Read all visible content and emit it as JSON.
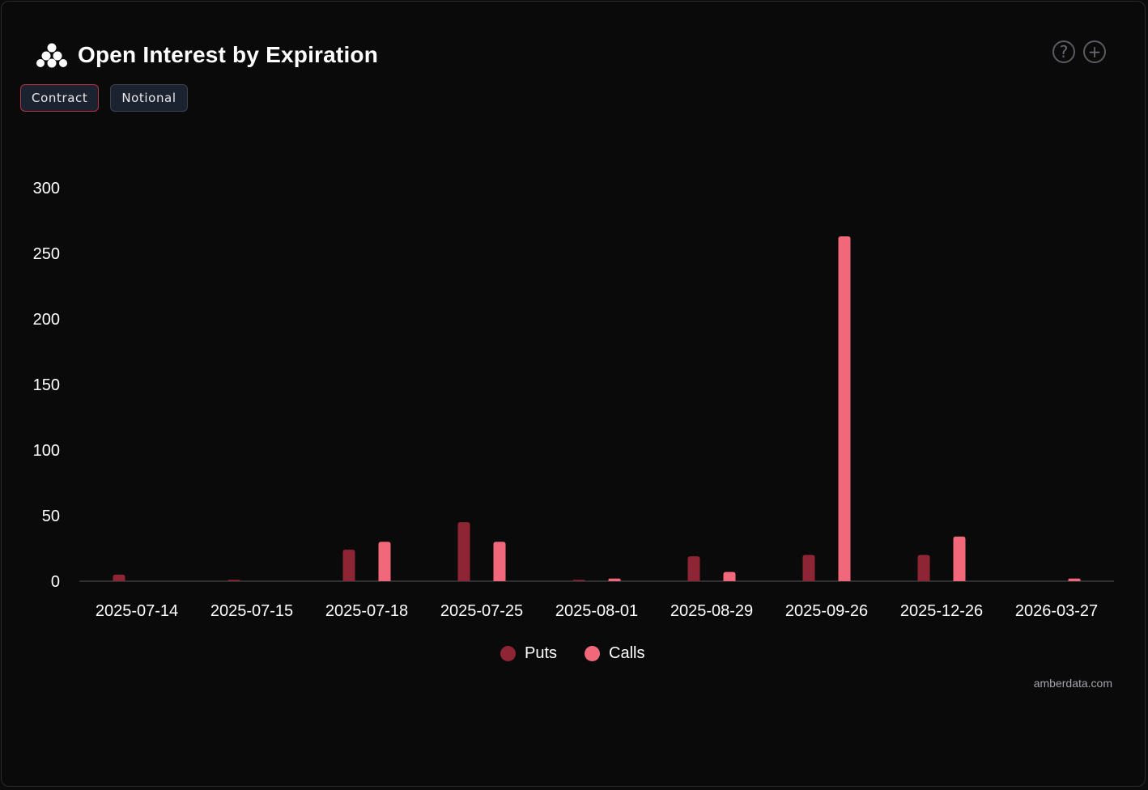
{
  "header": {
    "title": "Open Interest by Expiration",
    "logo_icon": "amberdata-logo-icon"
  },
  "toggles": [
    {
      "label": "Contract",
      "active": true
    },
    {
      "label": "Notional",
      "active": false
    }
  ],
  "controls": {
    "help_symbol": "?",
    "add_symbol": "+"
  },
  "legend": {
    "puts_label": "Puts",
    "calls_label": "Calls"
  },
  "credit": "amberdata.com",
  "colors": {
    "puts": "#8e2535",
    "calls": "#f2687b"
  },
  "chart_data": {
    "type": "bar",
    "categories": [
      "2025-07-14",
      "2025-07-15",
      "2025-07-18",
      "2025-07-25",
      "2025-08-01",
      "2025-08-29",
      "2025-09-26",
      "2025-12-26",
      "2026-03-27"
    ],
    "series": [
      {
        "name": "Puts",
        "values": [
          5,
          1,
          24,
          45,
          1,
          19,
          20,
          20,
          0
        ]
      },
      {
        "name": "Calls",
        "values": [
          0,
          0,
          30,
          30,
          2,
          7,
          263,
          34,
          2
        ]
      }
    ],
    "yticks": [
      0,
      50,
      100,
      150,
      200,
      250,
      300
    ],
    "ylim": [
      0,
      300
    ],
    "grid": false,
    "legend_position": "bottom-center"
  }
}
